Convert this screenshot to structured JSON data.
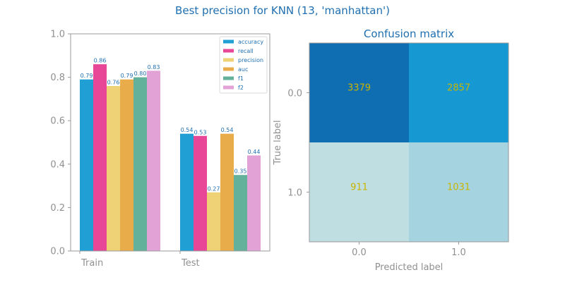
{
  "figure": {
    "title": "Best precision for KNN (13, 'manhattan')"
  },
  "colors": {
    "title": "#1f6fb0",
    "axis_text": "#909090",
    "spine": "#9a9a9a",
    "bar_label": "#1f6fb0",
    "cm_text": "#c8b400"
  },
  "chart_data": [
    {
      "type": "bar",
      "title": "",
      "categories": [
        "Train",
        "Test"
      ],
      "ylim": [
        0,
        1.0
      ],
      "yticks": [
        "0.0",
        "0.2",
        "0.4",
        "0.6",
        "0.8",
        "1.0"
      ],
      "grid": false,
      "legend_position": "top-right",
      "series": [
        {
          "name": "accuracy",
          "color": "#1f9fd4",
          "values": [
            0.79,
            0.54
          ],
          "labels": [
            "0.79",
            "0.54"
          ]
        },
        {
          "name": "recall",
          "color": "#e84797",
          "values": [
            0.86,
            0.53
          ],
          "labels": [
            "0.86",
            "0.53"
          ]
        },
        {
          "name": "precision",
          "color": "#efd176",
          "values": [
            0.76,
            0.27
          ],
          "labels": [
            "0.76",
            "0.27"
          ]
        },
        {
          "name": "auc",
          "color": "#e8ac4b",
          "values": [
            0.79,
            0.54
          ],
          "labels": [
            "0.79",
            "0.54"
          ]
        },
        {
          "name": "f1",
          "color": "#63b19b",
          "values": [
            0.8,
            0.35
          ],
          "labels": [
            "0.80",
            "0.35"
          ]
        },
        {
          "name": "f2",
          "color": "#e2a2d6",
          "values": [
            0.83,
            0.44
          ],
          "labels": [
            "0.83",
            "0.44"
          ]
        }
      ]
    },
    {
      "type": "heatmap",
      "title": "Confusion matrix",
      "xlabel": "Predicted label",
      "ylabel": "True label",
      "x_ticks": [
        "0.0",
        "1.0"
      ],
      "y_ticks": [
        "0.0",
        "1.0"
      ],
      "values": [
        [
          3379,
          2857
        ],
        [
          911,
          1031
        ]
      ],
      "cell_colors": [
        [
          "#0f6eb1",
          "#1699d3"
        ],
        [
          "#bedee1",
          "#a6d3e0"
        ]
      ]
    }
  ]
}
